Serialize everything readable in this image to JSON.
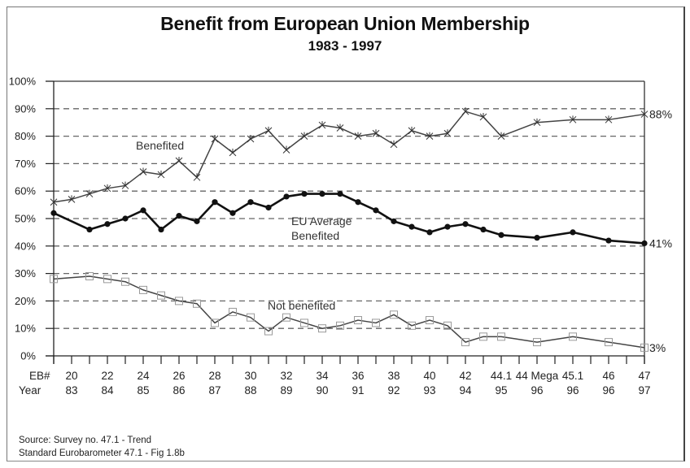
{
  "chart_data": {
    "type": "line",
    "title": "Benefit from European Union Membership",
    "subtitle": "1983 - 1997",
    "xlabel": "",
    "ylabel": "",
    "ylim": [
      0,
      100
    ],
    "y_ticks": [
      "0%",
      "10%",
      "20%",
      "30%",
      "40%",
      "50%",
      "60%",
      "70%",
      "80%",
      "90%",
      "100%"
    ],
    "grid": true,
    "x_row_labels": [
      "EB#",
      "Year"
    ],
    "x_tick_count": 34,
    "x_labels": [
      {
        "index": 1,
        "eb": "20",
        "year": "83"
      },
      {
        "index": 3,
        "eb": "22",
        "year": "84"
      },
      {
        "index": 5,
        "eb": "24",
        "year": "85"
      },
      {
        "index": 7,
        "eb": "26",
        "year": "86"
      },
      {
        "index": 9,
        "eb": "28",
        "year": "87"
      },
      {
        "index": 11,
        "eb": "30",
        "year": "88"
      },
      {
        "index": 13,
        "eb": "32",
        "year": "89"
      },
      {
        "index": 15,
        "eb": "34",
        "year": "90"
      },
      {
        "index": 17,
        "eb": "36",
        "year": "91"
      },
      {
        "index": 19,
        "eb": "38",
        "year": "92"
      },
      {
        "index": 21,
        "eb": "40",
        "year": "93"
      },
      {
        "index": 23,
        "eb": "42",
        "year": "94"
      },
      {
        "index": 25,
        "eb": "44.1",
        "year": "95"
      },
      {
        "index": 27,
        "eb": "44 Mega",
        "year": "96"
      },
      {
        "index": 29,
        "eb": "45.1",
        "year": "96"
      },
      {
        "index": 31,
        "eb": "46",
        "year": "96"
      },
      {
        "index": 33,
        "eb": "47",
        "year": "97"
      }
    ],
    "series": [
      {
        "name": "Benefited",
        "marker": "star",
        "annotation": "Benefited",
        "end_label": "88%",
        "x": [
          0,
          1,
          2,
          3,
          4,
          5,
          6,
          7,
          8,
          9,
          10,
          11,
          12,
          13,
          14,
          15,
          16,
          17,
          18,
          19,
          20,
          21,
          22,
          23,
          24,
          25,
          27,
          29,
          31,
          33
        ],
        "values": [
          56,
          57,
          59,
          61,
          62,
          67,
          66,
          71,
          65,
          79,
          74,
          79,
          82,
          75,
          80,
          84,
          83,
          80,
          81,
          77,
          82,
          80,
          81,
          89,
          87,
          80,
          85,
          86,
          86,
          88
        ]
      },
      {
        "name": "EU Average Benefited",
        "marker": "dot",
        "annotation": [
          "EU Average",
          "Benefited"
        ],
        "end_label": "41%",
        "x": [
          0,
          2,
          3,
          4,
          5,
          6,
          7,
          8,
          9,
          10,
          11,
          12,
          13,
          14,
          15,
          16,
          17,
          18,
          19,
          20,
          21,
          22,
          23,
          24,
          25,
          27,
          29,
          31,
          33
        ],
        "values": [
          52,
          46,
          48,
          50,
          53,
          46,
          51,
          49,
          56,
          52,
          56,
          54,
          58,
          59,
          59,
          59,
          56,
          53,
          49,
          47,
          45,
          47,
          48,
          46,
          44,
          43,
          45,
          42,
          41
        ]
      },
      {
        "name": "Not benefited",
        "marker": "square",
        "annotation": "Not benefited",
        "end_label": "3%",
        "x": [
          0,
          2,
          3,
          4,
          5,
          6,
          7,
          8,
          9,
          10,
          11,
          12,
          13,
          14,
          15,
          16,
          17,
          18,
          19,
          20,
          21,
          22,
          23,
          24,
          25,
          27,
          29,
          31,
          33
        ],
        "values": [
          28,
          29,
          28,
          27,
          24,
          22,
          20,
          19,
          12,
          16,
          14,
          9,
          14,
          12,
          10,
          11,
          13,
          12,
          15,
          11,
          13,
          11,
          5,
          7,
          7,
          5,
          7,
          5,
          3
        ]
      }
    ]
  },
  "source": {
    "line1": "Source:  Survey no.  47.1 - Trend",
    "line2": "Standard Eurobarometer 47.1 - Fig 1.8b"
  }
}
